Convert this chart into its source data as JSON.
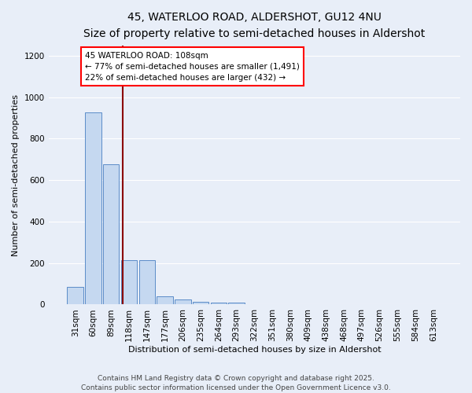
{
  "title_line1": "45, WATERLOO ROAD, ALDERSHOT, GU12 4NU",
  "title_line2": "Size of property relative to semi-detached houses in Aldershot",
  "xlabel": "Distribution of semi-detached houses by size in Aldershot",
  "ylabel": "Number of semi-detached properties",
  "categories": [
    "31sqm",
    "60sqm",
    "89sqm",
    "118sqm",
    "147sqm",
    "177sqm",
    "206sqm",
    "235sqm",
    "264sqm",
    "293sqm",
    "322sqm",
    "351sqm",
    "380sqm",
    "409sqm",
    "438sqm",
    "468sqm",
    "497sqm",
    "526sqm",
    "555sqm",
    "584sqm",
    "613sqm"
  ],
  "values": [
    85,
    925,
    675,
    215,
    215,
    40,
    25,
    15,
    10,
    10,
    0,
    0,
    0,
    0,
    0,
    0,
    0,
    0,
    0,
    0,
    0
  ],
  "bar_color": "#c5d8f0",
  "bar_edge_color": "#5b8cc8",
  "subject_line_color": "#8b0000",
  "annotation_box_text": "45 WATERLOO ROAD: 108sqm\n← 77% of semi-detached houses are smaller (1,491)\n22% of semi-detached houses are larger (432) →",
  "ylim": [
    0,
    1250
  ],
  "yticks": [
    0,
    200,
    400,
    600,
    800,
    1000,
    1200
  ],
  "background_color": "#e8eef8",
  "grid_color": "#ffffff",
  "footer_line1": "Contains HM Land Registry data © Crown copyright and database right 2025.",
  "footer_line2": "Contains public sector information licensed under the Open Government Licence v3.0.",
  "title_fontsize": 10,
  "subtitle_fontsize": 9,
  "axis_label_fontsize": 8,
  "tick_fontsize": 7.5,
  "annotation_fontsize": 7.5,
  "footer_fontsize": 6.5
}
